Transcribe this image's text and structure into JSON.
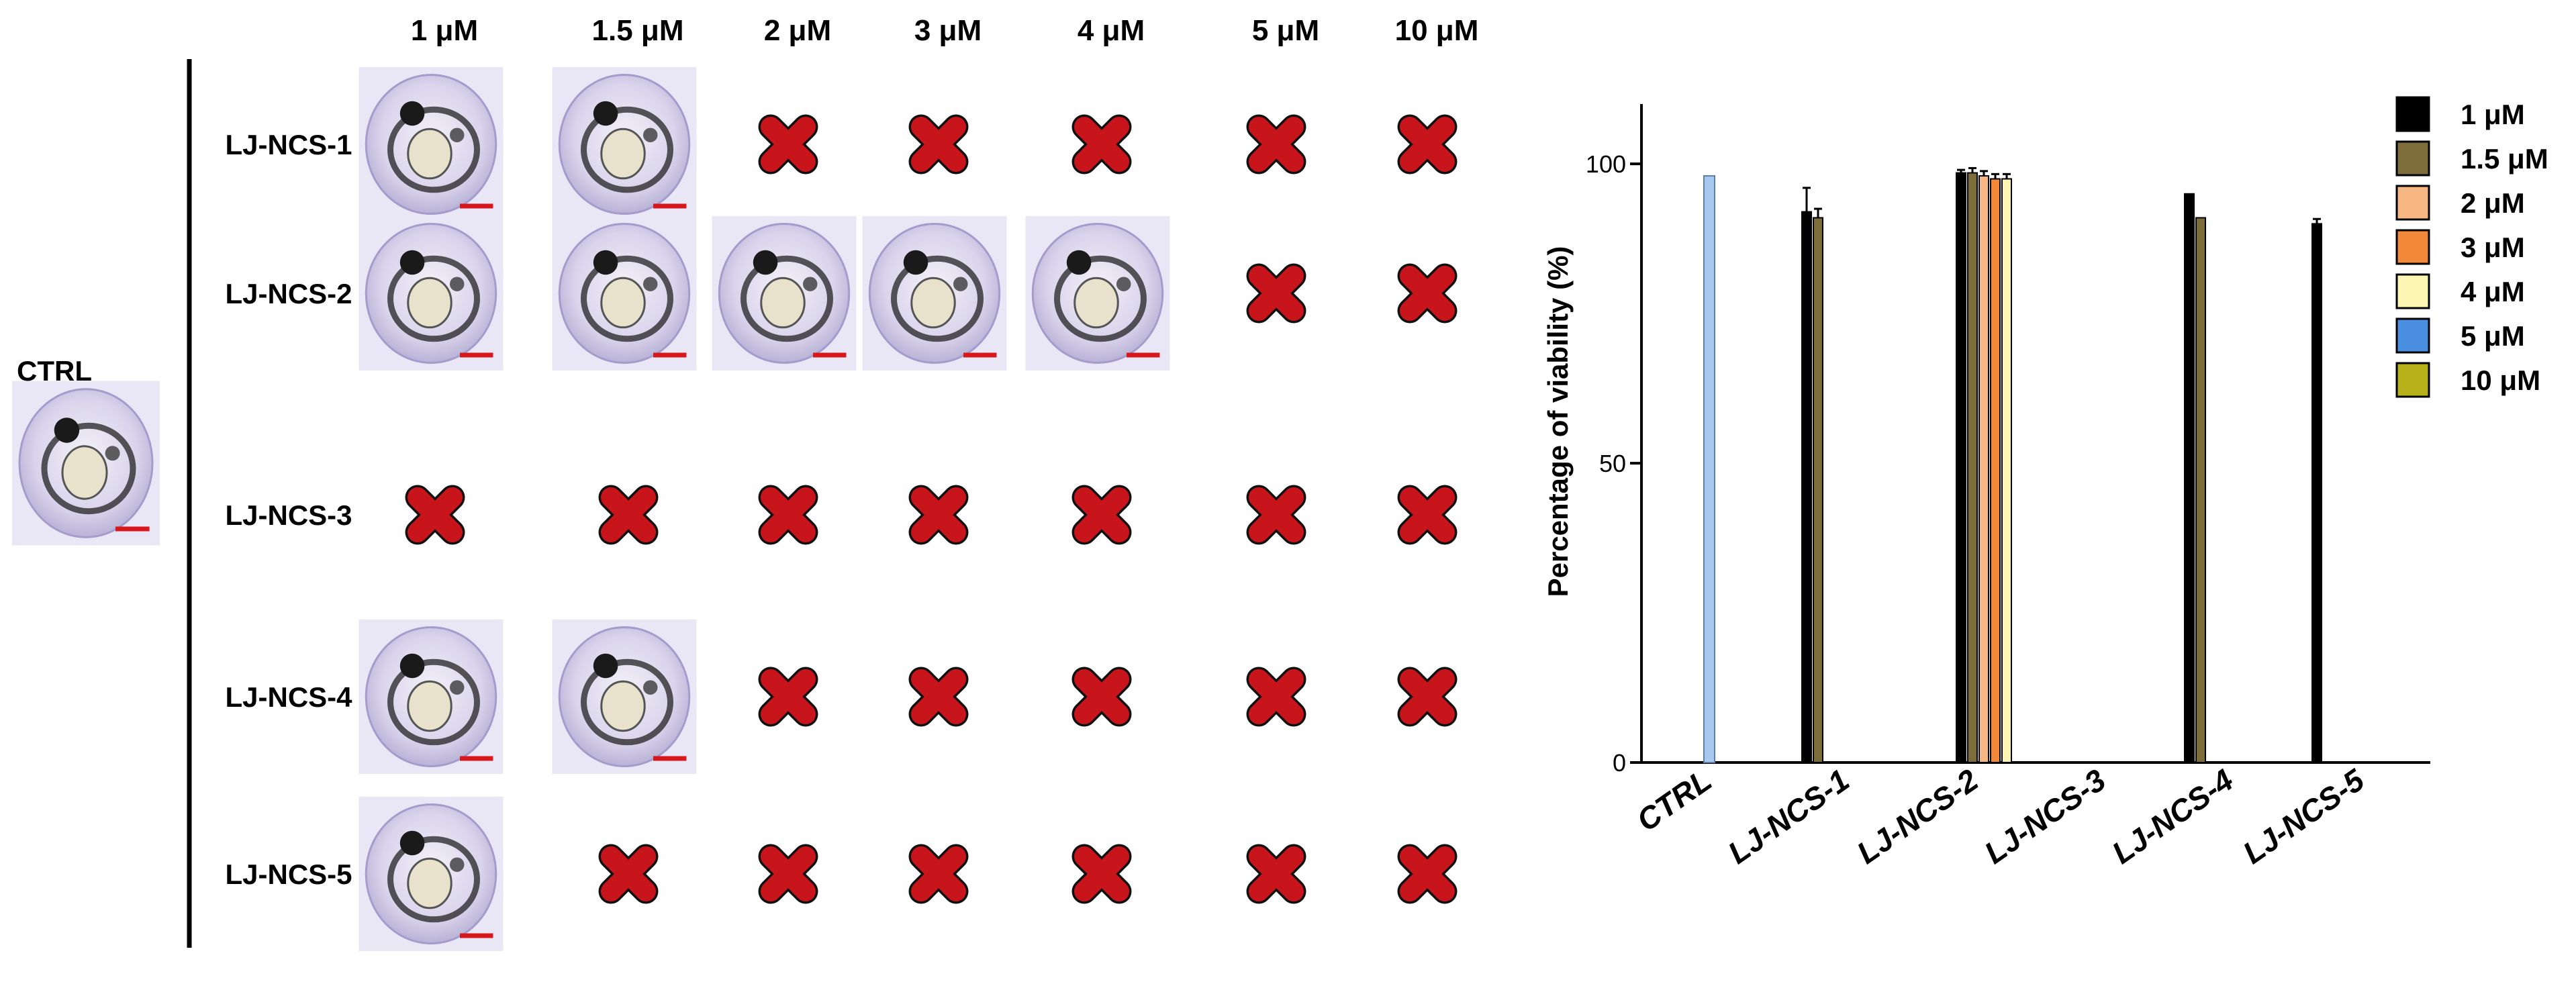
{
  "panel_a": {
    "concentrations": [
      "1 μM",
      "1.5 μM",
      "2 μM",
      "3 μM",
      "4 μM",
      "5 μM",
      "10 μM"
    ],
    "control_label": "CTRL",
    "compounds": [
      {
        "label": "LJ-NCS-1",
        "viable": [
          true,
          true,
          false,
          false,
          false,
          false,
          false
        ]
      },
      {
        "label": "LJ-NCS-2",
        "viable": [
          true,
          true,
          true,
          true,
          true,
          false,
          false
        ]
      },
      {
        "label": "LJ-NCS-3",
        "viable": [
          false,
          false,
          false,
          false,
          false,
          false,
          false
        ]
      },
      {
        "label": "LJ-NCS-4",
        "viable": [
          true,
          true,
          false,
          false,
          false,
          false,
          false
        ]
      },
      {
        "label": "LJ-NCS-5",
        "viable": [
          true,
          false,
          false,
          false,
          false,
          false,
          false
        ]
      }
    ]
  },
  "chart_data": {
    "type": "bar",
    "ylabel": "Percentage of viability (%)",
    "ylim": [
      0,
      110
    ],
    "yticks": [
      "0",
      "50",
      "100"
    ],
    "categories": [
      "CTRL",
      "LJ-NCS-1",
      "LJ-NCS-2",
      "LJ-NCS-3",
      "LJ-NCS-4",
      "LJ-NCS-5"
    ],
    "control": {
      "name": "CTRL",
      "value": 98,
      "color": "#a9c8ee"
    },
    "series": [
      {
        "name": "1 μM",
        "color": "#000000",
        "values": [
          null,
          92,
          98.5,
          0,
          95,
          90
        ],
        "errors": [
          null,
          4,
          0.5,
          null,
          null,
          0.8
        ]
      },
      {
        "name": "1.5 μM",
        "color": "#7d6d3a",
        "values": [
          null,
          91,
          98.5,
          0,
          91,
          null
        ],
        "errors": [
          null,
          1.5,
          0.8,
          null,
          null,
          null
        ]
      },
      {
        "name": "2 μM",
        "color": "#f7b785",
        "values": [
          null,
          null,
          98,
          null,
          null,
          null
        ],
        "errors": [
          null,
          null,
          0.8,
          null,
          null,
          null
        ]
      },
      {
        "name": "3 μM",
        "color": "#f2883a",
        "values": [
          null,
          null,
          97.5,
          null,
          null,
          null
        ],
        "errors": [
          null,
          null,
          0.8,
          null,
          null,
          null
        ]
      },
      {
        "name": "4 μM",
        "color": "#fdf6b3",
        "values": [
          null,
          null,
          97.5,
          null,
          null,
          null
        ],
        "errors": [
          null,
          null,
          0.8,
          null,
          null,
          null
        ]
      },
      {
        "name": "5 μM",
        "color": "#4a8fe0",
        "values": [
          null,
          null,
          null,
          null,
          null,
          null
        ],
        "errors": []
      },
      {
        "name": "10 μM",
        "color": "#b7b21a",
        "values": [
          null,
          null,
          null,
          null,
          null,
          null
        ],
        "errors": []
      }
    ]
  }
}
